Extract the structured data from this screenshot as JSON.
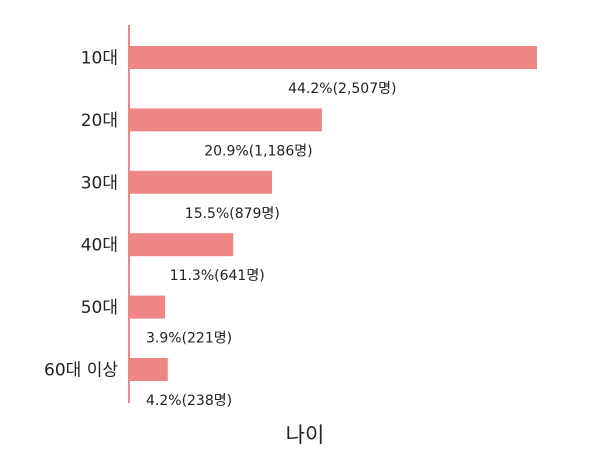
{
  "chart_data": {
    "type": "barh",
    "x_label": "나이",
    "categories": [
      "10대",
      "20대",
      "30대",
      "40대",
      "50대",
      "60대 이상"
    ],
    "values": [
      44.2,
      20.9,
      15.5,
      11.3,
      3.9,
      4.2
    ],
    "value_labels": [
      "44.2%(2,507명)",
      "20.9%(1,186명)",
      "15.5%(879명)",
      "11.3%(641명)",
      "3.9%(221명)",
      "4.2%(238명)"
    ],
    "color": "#ee8686"
  }
}
